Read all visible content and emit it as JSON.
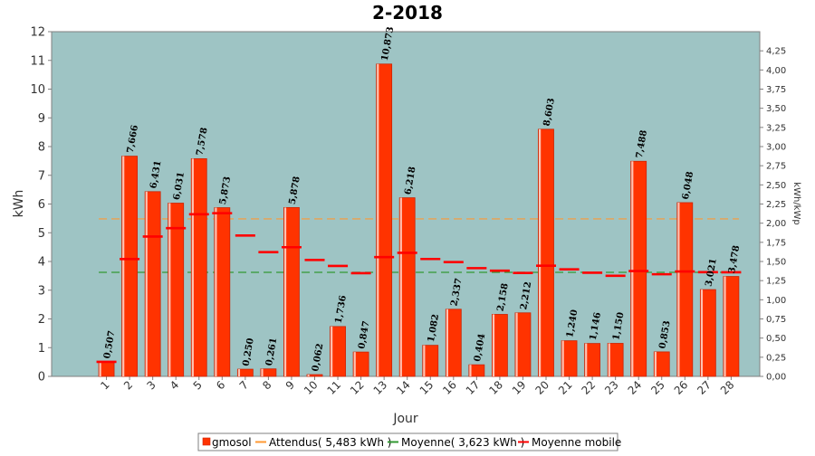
{
  "chart_data": {
    "type": "bar",
    "title": "2-2018",
    "xlabel": "Jour",
    "ylabel": "kWh",
    "y2label": "kWh/kWp",
    "ylim": [
      0,
      12
    ],
    "y2lim": [
      0,
      4.5
    ],
    "yticks": [
      "0",
      "1",
      "2",
      "3",
      "4",
      "5",
      "6",
      "7",
      "8",
      "9",
      "10",
      "11",
      "12"
    ],
    "y2ticks": [
      "0,00",
      "0,25",
      "0,50",
      "0,75",
      "1,00",
      "1,25",
      "1,50",
      "1,75",
      "2,00",
      "2,25",
      "2,50",
      "2,75",
      "3,00",
      "3,25",
      "3,50",
      "3,75",
      "4,00",
      "4,25"
    ],
    "categories": [
      "1",
      "2",
      "3",
      "4",
      "5",
      "6",
      "7",
      "8",
      "9",
      "10",
      "11",
      "12",
      "13",
      "14",
      "15",
      "16",
      "17",
      "18",
      "19",
      "20",
      "21",
      "22",
      "23",
      "24",
      "25",
      "26",
      "27",
      "28"
    ],
    "values": [
      0.507,
      7.666,
      6.431,
      6.031,
      7.578,
      5.873,
      0.25,
      0.261,
      5.878,
      0.062,
      1.736,
      0.847,
      10.873,
      6.218,
      1.082,
      2.337,
      0.404,
      2.158,
      2.212,
      8.603,
      1.24,
      1.146,
      1.15,
      7.488,
      0.853,
      6.048,
      3.021,
      3.478
    ],
    "value_labels": [
      "0,507",
      "7,666",
      "6,431",
      "6,031",
      "7,578",
      "5,873",
      "0,250",
      "0,261",
      "5,878",
      "0,062",
      "1,736",
      "0,847",
      "10,873",
      "6,218",
      "1,082",
      "2,337",
      "0,404",
      "2,158",
      "2,212",
      "8,603",
      "1,240",
      "1,146",
      "1,150",
      "7,488",
      "0,853",
      "6,048",
      "3,021",
      "3,478"
    ],
    "moyenne_mobile": [
      0.507,
      4.086,
      4.868,
      5.159,
      5.643,
      5.681,
      4.905,
      4.324,
      4.496,
      4.053,
      3.843,
      3.593,
      4.153,
      4.301,
      4.087,
      3.978,
      3.768,
      3.678,
      3.601,
      3.851,
      3.727,
      3.609,
      3.502,
      3.668,
      3.555,
      3.651,
      3.628,
      3.623
    ],
    "attendu": 5.483,
    "moyenne": 3.623,
    "grid": false,
    "legend_position": "bottom",
    "colors": {
      "bar": "#ff3300",
      "bar_edge": "#cc2200",
      "plot_bg": "#9ec4c4",
      "attendu": "#ff9933",
      "moyenne": "#339933",
      "moyenne_mobile": "#ff0000"
    },
    "legend": [
      {
        "label": "gmosol",
        "kind": "box"
      },
      {
        "label": "Attendus( 5,483 kWh )",
        "kind": "line-attendu"
      },
      {
        "label": "Moyenne( 3,623 kWh )",
        "kind": "line-moyenne"
      },
      {
        "label": "Moyenne mobile",
        "kind": "line-mobile"
      }
    ]
  }
}
